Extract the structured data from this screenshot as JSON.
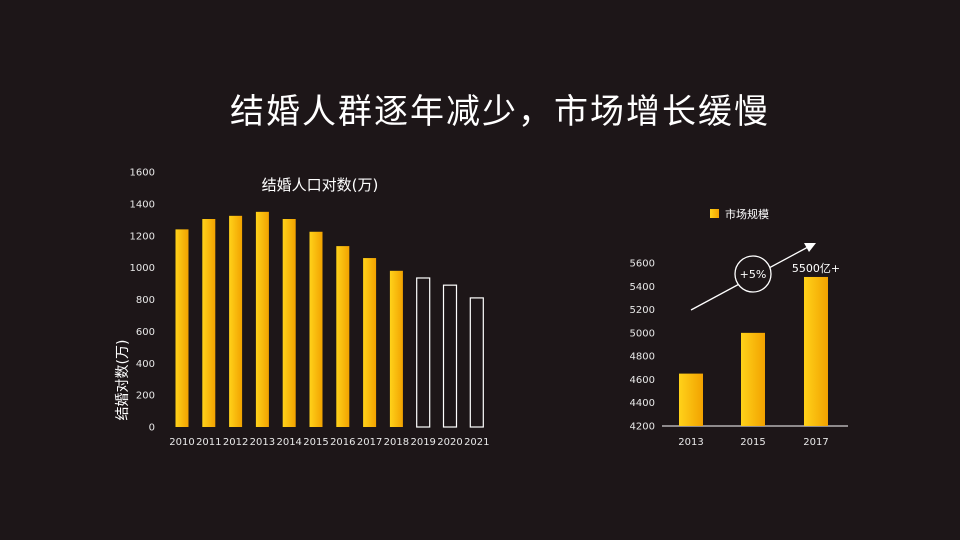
{
  "page_title": "结婚人群逐年减少，市场增长缓慢",
  "colors": {
    "background": "#1d1618",
    "bar_light": "#ffd21a",
    "bar_dark": "#f2a200",
    "outline": "#ffffff"
  },
  "chart_data": [
    {
      "type": "bar",
      "title": "结婚人口对数(万)",
      "ylabel": "结婚对数(万)",
      "xlabel": "",
      "categories": [
        "2010",
        "2011",
        "2012",
        "2013",
        "2014",
        "2015",
        "2016",
        "2017",
        "2018",
        "2019",
        "2020",
        "2021"
      ],
      "values": [
        1240,
        1305,
        1325,
        1350,
        1305,
        1225,
        1135,
        1060,
        980,
        935,
        890,
        810
      ],
      "styles": [
        "filled",
        "filled",
        "filled",
        "filled",
        "filled",
        "filled",
        "filled",
        "filled",
        "filled",
        "outline",
        "outline",
        "outline"
      ],
      "ylim": [
        0,
        1600
      ],
      "yticks": [
        0,
        200,
        400,
        600,
        800,
        1000,
        1200,
        1400,
        1600
      ],
      "grid": false
    },
    {
      "type": "bar",
      "title": "",
      "legend": [
        "市场规模"
      ],
      "legend_position": "top",
      "categories": [
        "2013",
        "2015",
        "2017"
      ],
      "values": [
        4650,
        5000,
        5480
      ],
      "ylim": [
        4200,
        5600
      ],
      "yticks": [
        4200,
        4400,
        4600,
        4800,
        5000,
        5200,
        5400,
        5600
      ],
      "annotations": {
        "growth": "+5%",
        "top_value": "5500亿+"
      },
      "grid": false
    }
  ]
}
